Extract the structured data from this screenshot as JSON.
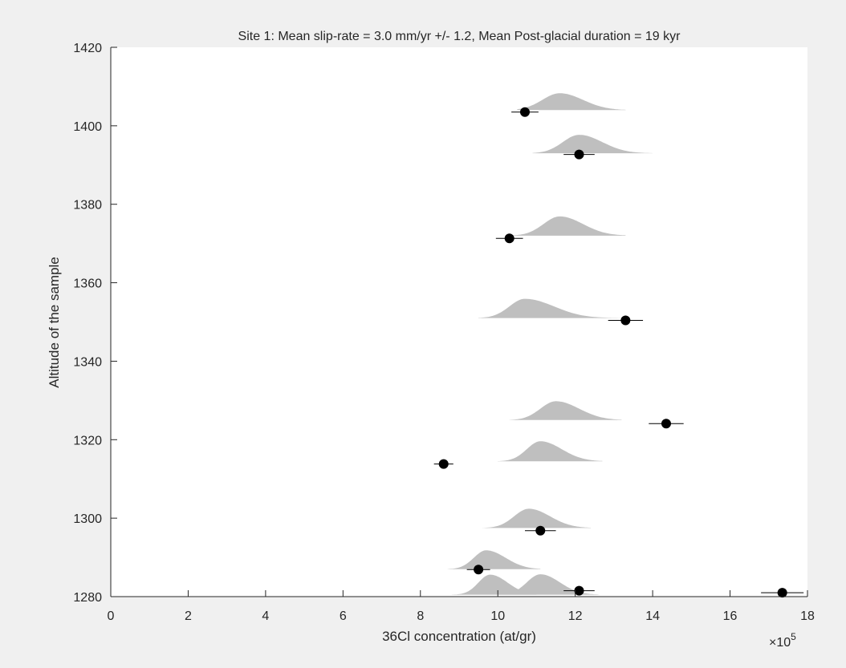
{
  "chart_data": {
    "type": "scatter",
    "title": "Site 1: Mean slip-rate = 3.0 mm/yr +/- 1.2, Mean Post-glacial duration = 19 kyr",
    "xlabel": "36Cl concentration (at/gr)",
    "ylabel": "Altitude of the sample",
    "x_exponent_label": "×10",
    "x_exponent_power": "5",
    "xlim": [
      0,
      18
    ],
    "ylim": [
      1280,
      1420
    ],
    "x_ticks": [
      "0",
      "2",
      "4",
      "6",
      "8",
      "10",
      "12",
      "14",
      "16",
      "18"
    ],
    "y_ticks": [
      "1280",
      "1300",
      "1320",
      "1340",
      "1360",
      "1380",
      "1400",
      "1420"
    ],
    "grid": false,
    "colors": {
      "background": "#f0f0f0",
      "axes_background": "#ffffff",
      "axis": "#262626",
      "distribution_fill": "#bfbfbf",
      "marker": "#000000"
    },
    "series": [
      {
        "kind": "observed",
        "marker": "filled-circle",
        "points": [
          {
            "y": 1403.5,
            "x": 10.7,
            "xerr": 0.35
          },
          {
            "y": 1392.7,
            "x": 12.1,
            "xerr": 0.4
          },
          {
            "y": 1371.3,
            "x": 10.3,
            "xerr": 0.35
          },
          {
            "y": 1350.4,
            "x": 13.3,
            "xerr": 0.45
          },
          {
            "y": 1324.1,
            "x": 14.35,
            "xerr": 0.45
          },
          {
            "y": 1313.8,
            "x": 8.6,
            "xerr": 0.25
          },
          {
            "y": 1296.8,
            "x": 11.1,
            "xerr": 0.4
          },
          {
            "y": 1286.9,
            "x": 9.5,
            "xerr": 0.3
          },
          {
            "y": 1281.5,
            "x": 12.1,
            "xerr": 0.4
          },
          {
            "y": 1281.0,
            "x": 17.35,
            "xerr": 0.55
          }
        ]
      },
      {
        "kind": "modelled-distribution",
        "shape": "filled-density",
        "distributions": [
          {
            "base_y": 1404,
            "peak_x": 11.6,
            "height": 4.3,
            "x_min": 10.5,
            "x_max": 13.3,
            "left_sd": 0.45,
            "right_sd": 0.6
          },
          {
            "base_y": 1393,
            "peak_x": 12.1,
            "height": 4.7,
            "x_min": 10.9,
            "x_max": 14.0,
            "left_sd": 0.42,
            "right_sd": 0.6
          },
          {
            "base_y": 1372,
            "peak_x": 11.6,
            "height": 4.9,
            "x_min": 10.4,
            "x_max": 13.3,
            "left_sd": 0.42,
            "right_sd": 0.6
          },
          {
            "base_y": 1351,
            "peak_x": 10.7,
            "height": 4.9,
            "x_min": 9.5,
            "x_max": 13.7,
            "left_sd": 0.4,
            "right_sd": 0.75
          },
          {
            "base_y": 1325,
            "peak_x": 11.5,
            "height": 4.8,
            "x_min": 10.3,
            "x_max": 13.2,
            "left_sd": 0.4,
            "right_sd": 0.6
          },
          {
            "base_y": 1314.5,
            "peak_x": 11.1,
            "height": 5.1,
            "x_min": 10.0,
            "x_max": 12.7,
            "left_sd": 0.35,
            "right_sd": 0.55
          },
          {
            "base_y": 1297.5,
            "peak_x": 10.8,
            "height": 4.9,
            "x_min": 9.6,
            "x_max": 12.4,
            "left_sd": 0.38,
            "right_sd": 0.55
          },
          {
            "base_y": 1287,
            "peak_x": 9.7,
            "height": 4.8,
            "x_min": 8.7,
            "x_max": 11.1,
            "left_sd": 0.32,
            "right_sd": 0.5
          },
          {
            "base_y": 1280.5,
            "peak_x": 9.8,
            "height": 5.1,
            "x_min": 8.8,
            "x_max": 11.0,
            "left_sd": 0.3,
            "right_sd": 0.45
          },
          {
            "base_y": 1280.5,
            "peak_x": 11.1,
            "height": 5.2,
            "x_min": 10.0,
            "x_max": 12.6,
            "left_sd": 0.35,
            "right_sd": 0.5
          }
        ]
      }
    ]
  }
}
